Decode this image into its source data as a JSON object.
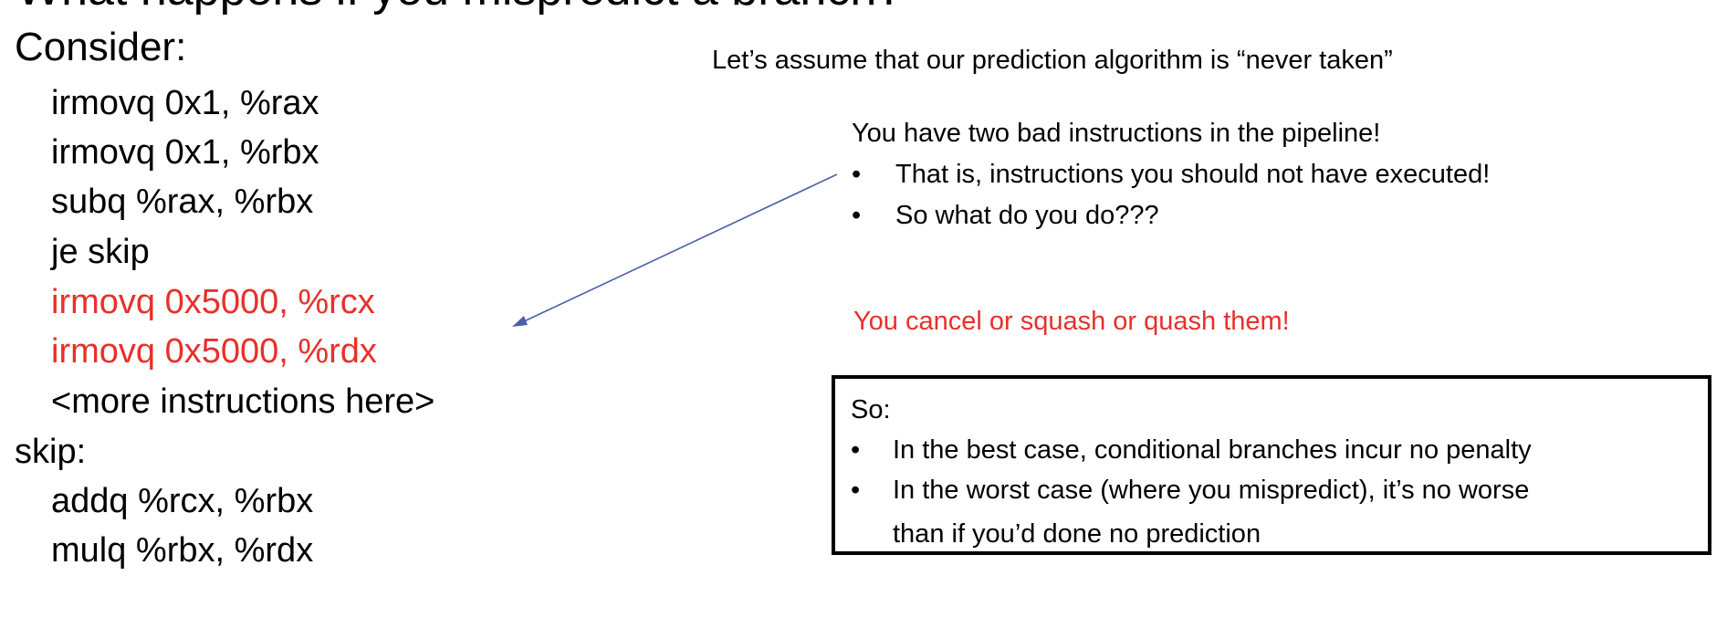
{
  "slide": {
    "title": "What happens if you mispredict a branch?"
  },
  "code": {
    "heading": "Consider:",
    "lines": [
      "irmovq 0x1, %rax",
      "irmovq 0x1, %rbx",
      "subq %rax, %rbx",
      "je skip",
      "irmovq 0x5000, %rcx",
      "irmovq 0x5000, %rdx",
      "<more instructions here>"
    ],
    "label": "skip:",
    "after_lines": [
      "addq %rcx, %rbx",
      "mulq %rbx, %rdx"
    ]
  },
  "notes": {
    "assumption": "Let’s assume that our prediction algorithm is “never taken”",
    "bad_heading": "You have two bad instructions in the pipeline!",
    "bullets": [
      "That is, instructions you should not have executed!",
      "So what do you do???"
    ],
    "bullet_char": "•",
    "cancel": "You cancel or squash or quash them!"
  },
  "summary": {
    "heading": "So:",
    "bullets": [
      "In the best case, conditional branches incur no penalty",
      "In the worst case (where you mispredict), it’s no worse"
    ],
    "continuation": "than if you’d done no prediction"
  },
  "colors": {
    "highlight": "#e8302a",
    "arrow": "#4a5fa8"
  }
}
